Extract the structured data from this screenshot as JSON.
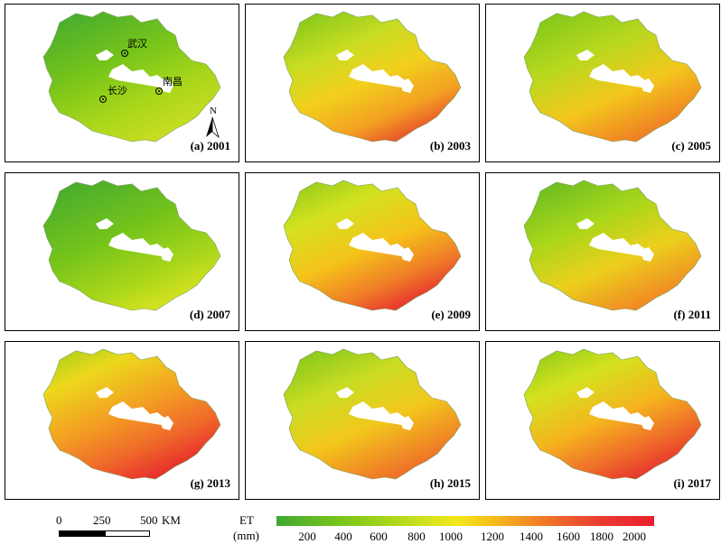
{
  "panels": [
    {
      "label": "(a) 2001"
    },
    {
      "label": "(b) 2003"
    },
    {
      "label": "(c) 2005"
    },
    {
      "label": "(d) 2007"
    },
    {
      "label": "(e) 2009"
    },
    {
      "label": "(f) 2011"
    },
    {
      "label": "(g) 2013"
    },
    {
      "label": "(h) 2015"
    },
    {
      "label": "(i) 2017"
    }
  ],
  "cities": {
    "wuhan": "武汉",
    "changsha": "长沙",
    "nanchang": "南昌"
  },
  "north_label": "N",
  "scale_bar": {
    "ticks": [
      "0",
      "250",
      "500"
    ],
    "unit": "KM"
  },
  "legend": {
    "title_line1": "ET",
    "title_line2": "(mm)",
    "ticks": [
      "200",
      "400",
      "600",
      "800",
      "1000",
      "1200",
      "1400",
      "1600",
      "1800",
      "2000"
    ],
    "colors": [
      "#3fa832",
      "#a8d61a",
      "#f2e81c",
      "#f39a22",
      "#e81f2c"
    ]
  }
}
